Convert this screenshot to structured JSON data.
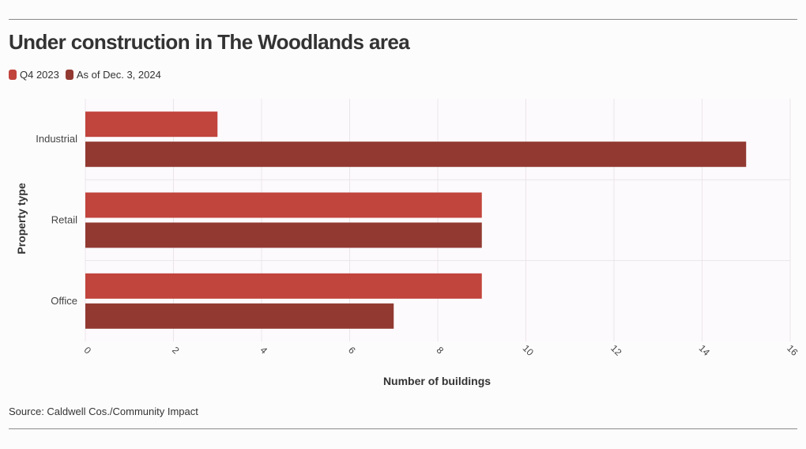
{
  "title": "Under construction in The Woodlands area",
  "source": "Source: Caldwell Cos./Community Impact",
  "colors": {
    "series_1": "#c1443d",
    "series_2": "#923a32",
    "grid": "#ebe5ea",
    "text": "#333333"
  },
  "chart_data": {
    "type": "bar",
    "orientation": "horizontal",
    "title": "Under construction in The Woodlands area",
    "xlabel": "Number of buildings",
    "ylabel": "Property type",
    "categories": [
      "Industrial",
      "Retail",
      "Office"
    ],
    "series": [
      {
        "name": "Q4 2023",
        "values": [
          3,
          9,
          9
        ],
        "color": "#c1443d"
      },
      {
        "name": "As of Dec. 3, 2024",
        "values": [
          15,
          9,
          7
        ],
        "color": "#923a32"
      }
    ],
    "xlim": [
      0,
      16
    ],
    "xticks": [
      "0",
      "2",
      "4",
      "6",
      "8",
      "10",
      "12",
      "14",
      "16"
    ],
    "grid": true,
    "legend_position": "top-left"
  }
}
